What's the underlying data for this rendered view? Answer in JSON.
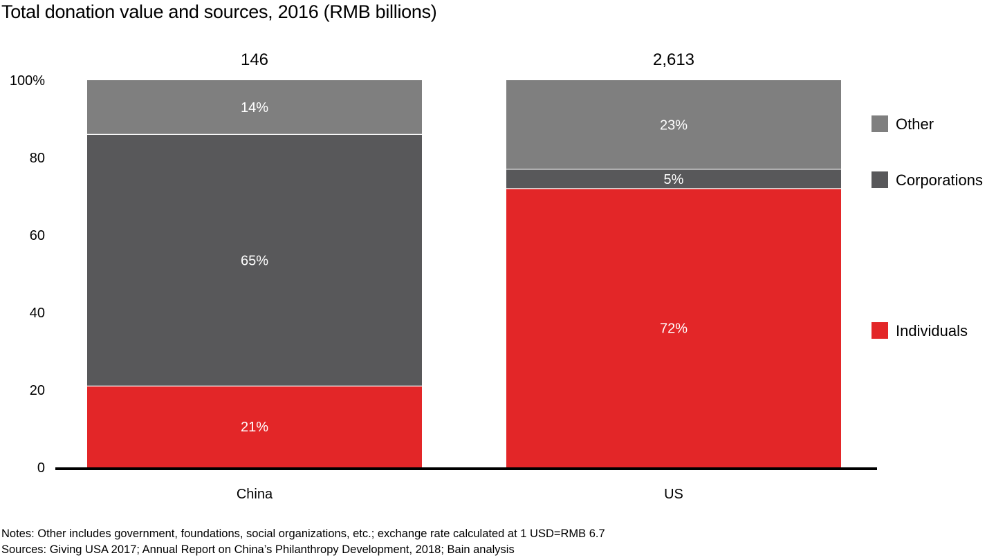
{
  "title": "Total donation value and sources, 2016 (RMB billions)",
  "notes": [
    "Notes: Other includes government, foundations, social organizations, etc.; exchange rate calculated at 1 USD=RMB 6.7",
    "Sources: Giving USA 2017; Annual Report on China’s Philanthropy Development, 2018; Bain analysis"
  ],
  "chart_data": {
    "type": "bar",
    "stacked": true,
    "percent": true,
    "title": "Total donation value and sources, 2016 (RMB billions)",
    "xlabel": "",
    "ylabel": "",
    "ylim": [
      0,
      100
    ],
    "yticks": [
      0,
      20,
      40,
      60,
      80,
      100
    ],
    "ytick_labels": [
      "0",
      "20",
      "40",
      "60",
      "80",
      "100%"
    ],
    "grid": false,
    "legend_position": "right",
    "categories": [
      "China",
      "US"
    ],
    "totals": [
      "146",
      "2,613"
    ],
    "total_values": [
      146,
      2613
    ],
    "series": [
      {
        "name": "Individuals",
        "color": "#e32628",
        "values": [
          21,
          72
        ],
        "labels": [
          "21%",
          "72%"
        ]
      },
      {
        "name": "Corporations",
        "color": "#58585a",
        "values": [
          65,
          5
        ],
        "labels": [
          "65%",
          "5%"
        ]
      },
      {
        "name": "Other",
        "color": "#7f7f7f",
        "values": [
          14,
          23
        ],
        "labels": [
          "14%",
          "23%"
        ]
      }
    ],
    "legend_order": [
      "Other",
      "Corporations",
      "Individuals"
    ]
  }
}
